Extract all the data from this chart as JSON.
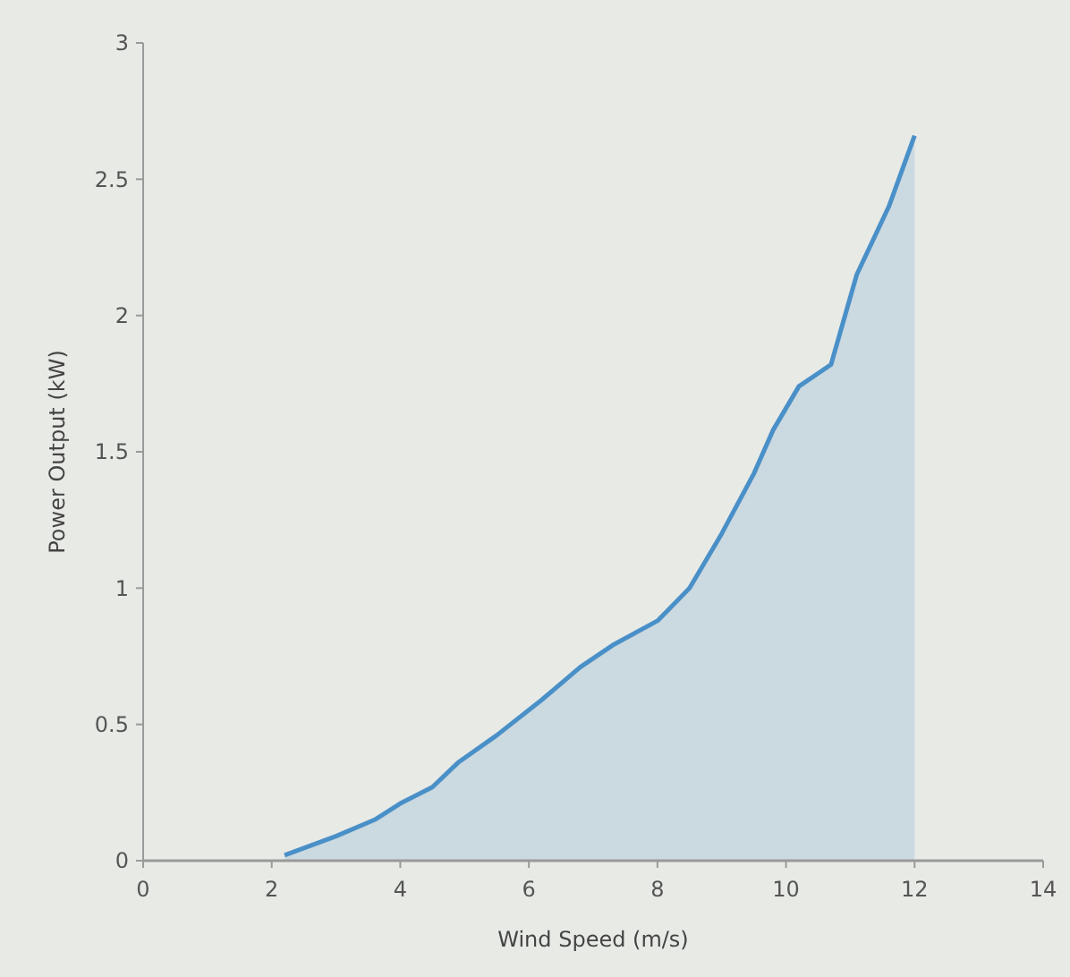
{
  "chart_data": {
    "type": "area",
    "xlabel": "Wind Speed (m/s)",
    "ylabel": "Power Output (kW)",
    "x": [
      2.2,
      3.0,
      3.6,
      4.0,
      4.5,
      4.9,
      5.5,
      6.2,
      6.8,
      7.3,
      8.0,
      8.5,
      9.0,
      9.5,
      9.8,
      10.2,
      10.7,
      11.1,
      11.6,
      12.0
    ],
    "series": [
      {
        "color": "#4a90c8",
        "values": [
          0.02,
          0.09,
          0.15,
          0.21,
          0.27,
          0.36,
          0.46,
          0.59,
          0.71,
          0.79,
          0.88,
          1.0,
          1.2,
          1.42,
          1.58,
          1.74,
          1.82,
          2.15,
          2.4,
          2.66
        ]
      }
    ],
    "xlim": [
      0,
      14
    ],
    "xticks": [
      0,
      2,
      4,
      6,
      8,
      10,
      12,
      14
    ],
    "ylim": [
      0,
      3
    ],
    "yticks": [
      0,
      0.5,
      1,
      1.5,
      2,
      2.5,
      3
    ],
    "grid": false
  }
}
